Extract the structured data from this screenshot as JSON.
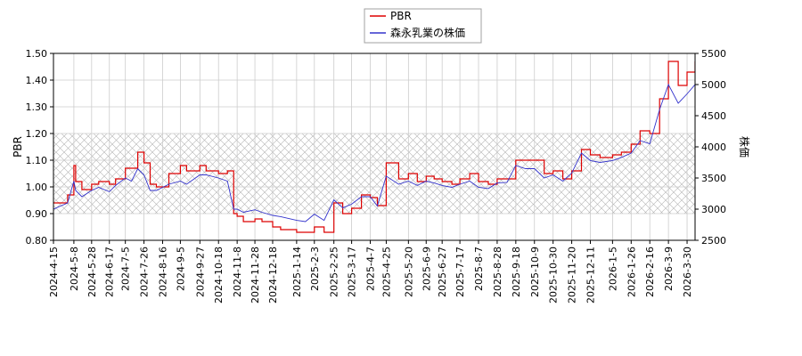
{
  "chart_data": {
    "type": "line",
    "title": "",
    "ylabel_left": "PBR",
    "ylabel_right": "株価",
    "ylim_left": [
      0.8,
      1.5
    ],
    "ylim_right": [
      2500,
      5500
    ],
    "yticks_left": [
      "0.80",
      "0.90",
      "1.00",
      "1.10",
      "1.20",
      "1.30",
      "1.40",
      "1.50"
    ],
    "yticks_right": [
      "2500",
      "3000",
      "3500",
      "4000",
      "4500",
      "5000",
      "5500"
    ],
    "xticks": [
      "2024-4-15",
      "2024-5-8",
      "2024-5-28",
      "2024-6-17",
      "2024-7-5",
      "2024-7-26",
      "2024-8-16",
      "2024-9-5",
      "2024-9-27",
      "2024-10-18",
      "2024-11-8",
      "2024-11-28",
      "2024-12-18",
      "2025-1-14",
      "2025-2-3",
      "2025-2-25",
      "2025-3-17",
      "2025-4-7",
      "2025-4-25",
      "2025-5-20",
      "2025-6-9",
      "2025-6-27",
      "2025-7-17",
      "2025-8-7",
      "2025-8-28",
      "2025-9-18",
      "2025-10-9",
      "2025-10-30",
      "2025-11-20",
      "2025-12-11",
      "2026-1-5",
      "2026-1-26",
      "2026-2-16",
      "2026-3-9",
      "2026-3-30"
    ],
    "grid": true,
    "hatched_band_left": [
      0.9,
      1.2
    ],
    "legend_position": "top-center",
    "series": [
      {
        "name": "PBR",
        "axis": "left",
        "color": "#dd0000",
        "x": [
          "2024-4-15",
          "2024-5-1",
          "2024-5-8",
          "2024-5-10",
          "2024-5-17",
          "2024-5-28",
          "2024-6-5",
          "2024-6-17",
          "2024-6-24",
          "2024-7-5",
          "2024-7-12",
          "2024-7-19",
          "2024-7-26",
          "2024-8-2",
          "2024-8-9",
          "2024-8-16",
          "2024-8-23",
          "2024-9-5",
          "2024-9-12",
          "2024-9-27",
          "2024-10-4",
          "2024-10-18",
          "2024-10-28",
          "2024-11-4",
          "2024-11-8",
          "2024-11-15",
          "2024-11-28",
          "2024-12-6",
          "2024-12-18",
          "2024-12-27",
          "2025-1-14",
          "2025-1-24",
          "2025-2-3",
          "2025-2-14",
          "2025-2-25",
          "2025-3-7",
          "2025-3-17",
          "2025-3-28",
          "2025-4-7",
          "2025-4-15",
          "2025-4-25",
          "2025-5-9",
          "2025-5-20",
          "2025-5-30",
          "2025-6-9",
          "2025-6-18",
          "2025-6-27",
          "2025-7-8",
          "2025-7-17",
          "2025-7-28",
          "2025-8-7",
          "2025-8-18",
          "2025-8-28",
          "2025-9-8",
          "2025-9-18",
          "2025-9-29",
          "2025-10-9",
          "2025-10-20",
          "2025-10-30",
          "2025-11-10",
          "2025-11-20",
          "2025-12-1",
          "2025-12-11",
          "2025-12-22",
          "2026-1-5",
          "2026-1-15",
          "2026-1-26",
          "2026-2-5",
          "2026-2-16",
          "2026-2-27",
          "2026-3-9",
          "2026-3-20",
          "2026-3-30",
          "2026-4-8"
        ],
        "values": [
          0.94,
          0.97,
          1.08,
          1.02,
          0.99,
          1.01,
          1.02,
          1.01,
          1.03,
          1.07,
          1.07,
          1.13,
          1.09,
          1.01,
          1.0,
          1.0,
          1.05,
          1.08,
          1.06,
          1.08,
          1.06,
          1.05,
          1.06,
          0.9,
          0.89,
          0.87,
          0.88,
          0.87,
          0.85,
          0.84,
          0.83,
          0.83,
          0.85,
          0.83,
          0.94,
          0.9,
          0.92,
          0.97,
          0.96,
          0.93,
          1.09,
          1.03,
          1.05,
          1.02,
          1.04,
          1.03,
          1.02,
          1.01,
          1.03,
          1.05,
          1.02,
          1.01,
          1.03,
          1.03,
          1.1,
          1.1,
          1.1,
          1.05,
          1.06,
          1.03,
          1.06,
          1.14,
          1.12,
          1.11,
          1.12,
          1.13,
          1.16,
          1.21,
          1.2,
          1.33,
          1.47,
          1.38,
          1.43,
          1.47
        ]
      },
      {
        "name": "森永乳業の株価",
        "axis": "right",
        "color": "#3333cc",
        "x": [
          "2024-4-15",
          "2024-5-1",
          "2024-5-8",
          "2024-5-10",
          "2024-5-17",
          "2024-5-28",
          "2024-6-5",
          "2024-6-17",
          "2024-6-24",
          "2024-7-5",
          "2024-7-12",
          "2024-7-19",
          "2024-7-26",
          "2024-8-2",
          "2024-8-9",
          "2024-8-16",
          "2024-8-23",
          "2024-9-5",
          "2024-9-12",
          "2024-9-27",
          "2024-10-4",
          "2024-10-18",
          "2024-10-28",
          "2024-11-4",
          "2024-11-8",
          "2024-11-15",
          "2024-11-28",
          "2024-12-6",
          "2024-12-18",
          "2024-12-27",
          "2025-1-14",
          "2025-1-24",
          "2025-2-3",
          "2025-2-14",
          "2025-2-25",
          "2025-3-7",
          "2025-3-17",
          "2025-3-28",
          "2025-4-7",
          "2025-4-15",
          "2025-4-25",
          "2025-5-9",
          "2025-5-20",
          "2025-5-30",
          "2025-6-9",
          "2025-6-18",
          "2025-6-27",
          "2025-7-8",
          "2025-7-17",
          "2025-7-28",
          "2025-8-7",
          "2025-8-18",
          "2025-8-28",
          "2025-9-8",
          "2025-9-18",
          "2025-9-29",
          "2025-10-9",
          "2025-10-20",
          "2025-10-30",
          "2025-11-10",
          "2025-11-20",
          "2025-12-1",
          "2025-12-11",
          "2025-12-22",
          "2026-1-5",
          "2026-1-15",
          "2026-1-26",
          "2026-2-5",
          "2026-2-16",
          "2026-2-27",
          "2026-3-9",
          "2026-3-20",
          "2026-3-30",
          "2026-4-8"
        ],
        "values": [
          3000,
          3100,
          3450,
          3300,
          3200,
          3300,
          3350,
          3280,
          3380,
          3500,
          3450,
          3650,
          3550,
          3300,
          3300,
          3350,
          3400,
          3450,
          3400,
          3550,
          3550,
          3500,
          3450,
          3000,
          3000,
          2950,
          2990,
          2950,
          2900,
          2880,
          2820,
          2800,
          2920,
          2820,
          3150,
          3020,
          3080,
          3200,
          3200,
          3050,
          3530,
          3400,
          3450,
          3380,
          3450,
          3420,
          3380,
          3350,
          3400,
          3450,
          3350,
          3330,
          3420,
          3430,
          3700,
          3650,
          3650,
          3500,
          3550,
          3450,
          3580,
          3900,
          3780,
          3750,
          3780,
          3830,
          3900,
          4100,
          4050,
          4600,
          5000,
          4700,
          4850,
          5000
        ]
      }
    ]
  }
}
